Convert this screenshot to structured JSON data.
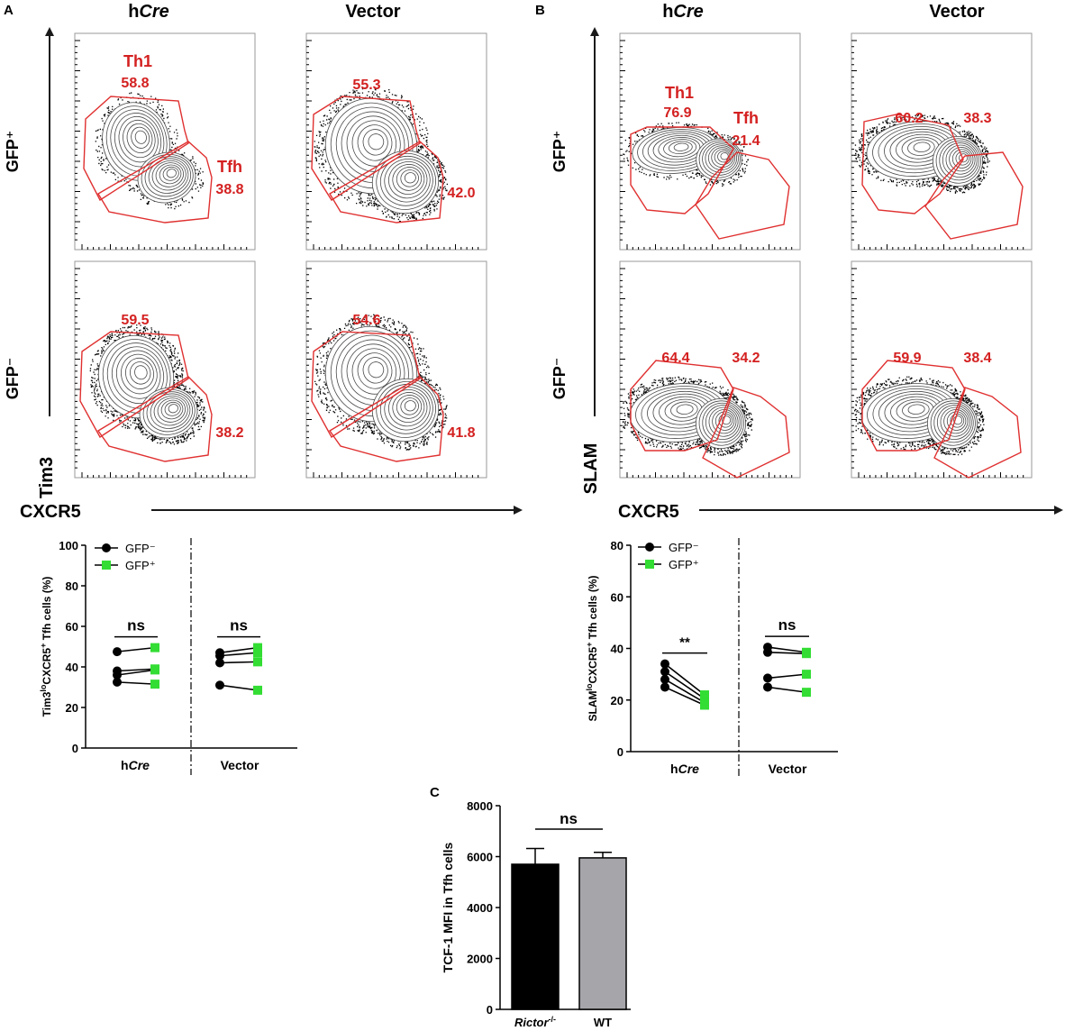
{
  "panels": {
    "A": {
      "letter": "A",
      "col_headers": [
        "hCre",
        "Vector"
      ],
      "row_labels": [
        "GFP⁺",
        "GFP⁻"
      ],
      "y_axis": "Tim3",
      "x_axis": "CXCR5",
      "gate_names": {
        "upper": "Th1",
        "lower": "Tfh"
      },
      "gates": [
        {
          "row": "GFP+",
          "col": "hCre",
          "upper": "58.8",
          "lower": "38.8"
        },
        {
          "row": "GFP+",
          "col": "Vector",
          "upper": "55.3",
          "lower": "42.0"
        },
        {
          "row": "GFP-",
          "col": "hCre",
          "upper": "59.5",
          "lower": "38.2"
        },
        {
          "row": "GFP-",
          "col": "Vector",
          "upper": "54.6",
          "lower": "41.8"
        }
      ]
    },
    "B": {
      "letter": "B",
      "col_headers": [
        "hCre",
        "Vector"
      ],
      "row_labels": [
        "GFP⁺",
        "GFP⁻"
      ],
      "y_axis": "SLAM",
      "x_axis": "CXCR5",
      "gate_names": {
        "upper": "Th1",
        "lower": "Tfh"
      },
      "gates": [
        {
          "row": "GFP+",
          "col": "hCre",
          "upper": "76.9",
          "lower": "21.4"
        },
        {
          "row": "GFP+",
          "col": "Vector",
          "upper": "60.2",
          "lower": "38.3"
        },
        {
          "row": "GFP-",
          "col": "hCre",
          "upper": "64.4",
          "lower": "34.2"
        },
        {
          "row": "GFP-",
          "col": "Vector",
          "upper": "59.9",
          "lower": "38.4"
        }
      ]
    },
    "C": {
      "letter": "C"
    }
  },
  "chart_data": [
    {
      "type": "line",
      "panel": "A",
      "ylabel": "Tim3loCXCR5+ Tfh cells (%)",
      "ylim": [
        0,
        100
      ],
      "yticks": [
        "0",
        "20",
        "40",
        "60",
        "80",
        "100"
      ],
      "groups": [
        {
          "name": "hCre",
          "significance": "ns",
          "pairs": [
            [
              47.5,
              49.5
            ],
            [
              38,
              39
            ],
            [
              36,
              38.5
            ],
            [
              32.5,
              31.5
            ]
          ]
        },
        {
          "name": "Vector",
          "significance": "ns",
          "pairs": [
            [
              47,
              49.5
            ],
            [
              45.5,
              47
            ],
            [
              42,
              42.5
            ],
            [
              31,
              28.5
            ]
          ]
        }
      ],
      "legend": [
        "GFP⁻",
        "GFP⁺"
      ],
      "colors": {
        "gfp_neg": "#000000",
        "gfp_pos": "#33dd33"
      }
    },
    {
      "type": "line",
      "panel": "B",
      "ylabel": "SLAMloCXCR5+ Tfh cells (%)",
      "ylim": [
        0,
        80
      ],
      "yticks": [
        "0",
        "20",
        "40",
        "60",
        "80"
      ],
      "groups": [
        {
          "name": "hCre",
          "significance": "**",
          "pairs": [
            [
              34,
              22
            ],
            [
              31,
              20.5
            ],
            [
              28,
              19
            ],
            [
              25,
              18
            ]
          ]
        },
        {
          "name": "Vector",
          "significance": "ns",
          "pairs": [
            [
              40.5,
              38.5
            ],
            [
              38.5,
              38
            ],
            [
              28.5,
              30
            ],
            [
              25,
              23
            ]
          ]
        }
      ],
      "legend": [
        "GFP⁻",
        "GFP⁺"
      ],
      "colors": {
        "gfp_neg": "#000000",
        "gfp_pos": "#33dd33"
      }
    },
    {
      "type": "bar",
      "panel": "C",
      "ylabel": "TCF-1 MFI in Tfh cells",
      "categories": [
        "Rictor",
        "WT"
      ],
      "category_superscript": [
        "-/-",
        ""
      ],
      "values": [
        5700,
        5950
      ],
      "errors": [
        620,
        220
      ],
      "ylim": [
        0,
        8000
      ],
      "yticks": [
        "0",
        "2000",
        "4000",
        "6000",
        "8000"
      ],
      "significance": "ns",
      "colors": [
        "#000000",
        "#a6a6aa"
      ]
    }
  ]
}
